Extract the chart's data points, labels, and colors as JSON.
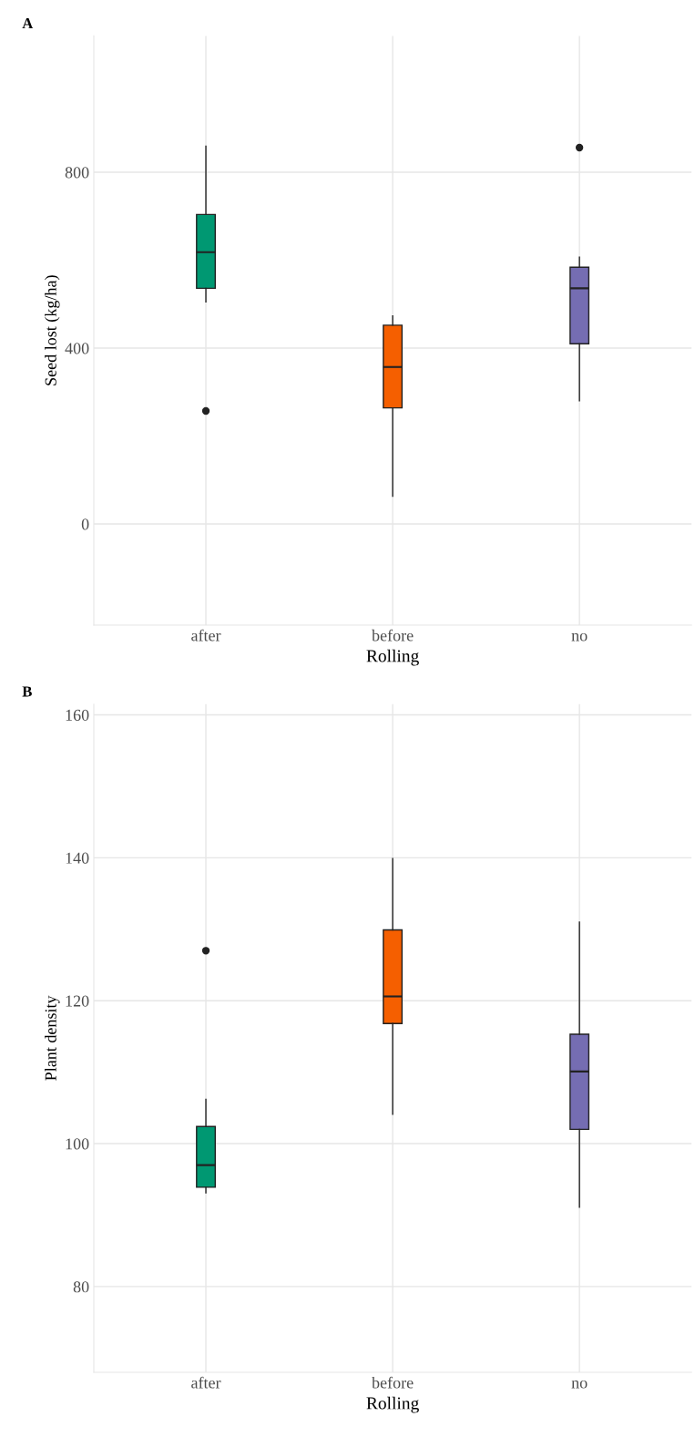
{
  "chart_data": [
    {
      "type": "box",
      "title": "A",
      "xlabel": "Rolling",
      "ylabel": "Seed lost (kg/ha)",
      "categories": [
        "after",
        "before",
        "no"
      ],
      "colors": [
        "#009872",
        "#f55f00",
        "#756db2"
      ],
      "boxes": [
        {
          "low": 505,
          "q1": 536,
          "median": 618,
          "q3": 704,
          "high": 859,
          "outliers": [
            257
          ]
        },
        {
          "low": 63,
          "q1": 264,
          "median": 357,
          "q3": 452,
          "high": 473
        },
        {
          "low": 280,
          "q1": 410,
          "median": 536,
          "q3": 584,
          "high": 607,
          "outliers": [
            856
          ]
        }
      ],
      "ylim": [
        -230,
        1110
      ],
      "yticks": [
        0,
        400,
        800
      ],
      "grid": true
    },
    {
      "type": "box",
      "title": "B",
      "xlabel": "Rolling",
      "ylabel": "Plant density",
      "categories": [
        "after",
        "before",
        "no"
      ],
      "colors": [
        "#009872",
        "#f55f00",
        "#756db2"
      ],
      "boxes": [
        {
          "low": 93.1,
          "q1": 93.9,
          "median": 97.0,
          "q3": 102.4,
          "high": 106.2,
          "outliers": [
            127.0
          ]
        },
        {
          "low": 104.1,
          "q1": 116.8,
          "median": 120.6,
          "q3": 129.9,
          "high": 139.9
        },
        {
          "low": 91.1,
          "q1": 102.0,
          "median": 110.1,
          "q3": 115.3,
          "high": 131.0
        }
      ],
      "ylim": [
        68,
        161.5
      ],
      "yticks": [
        80,
        100,
        120,
        140,
        160
      ],
      "grid": true
    }
  ]
}
